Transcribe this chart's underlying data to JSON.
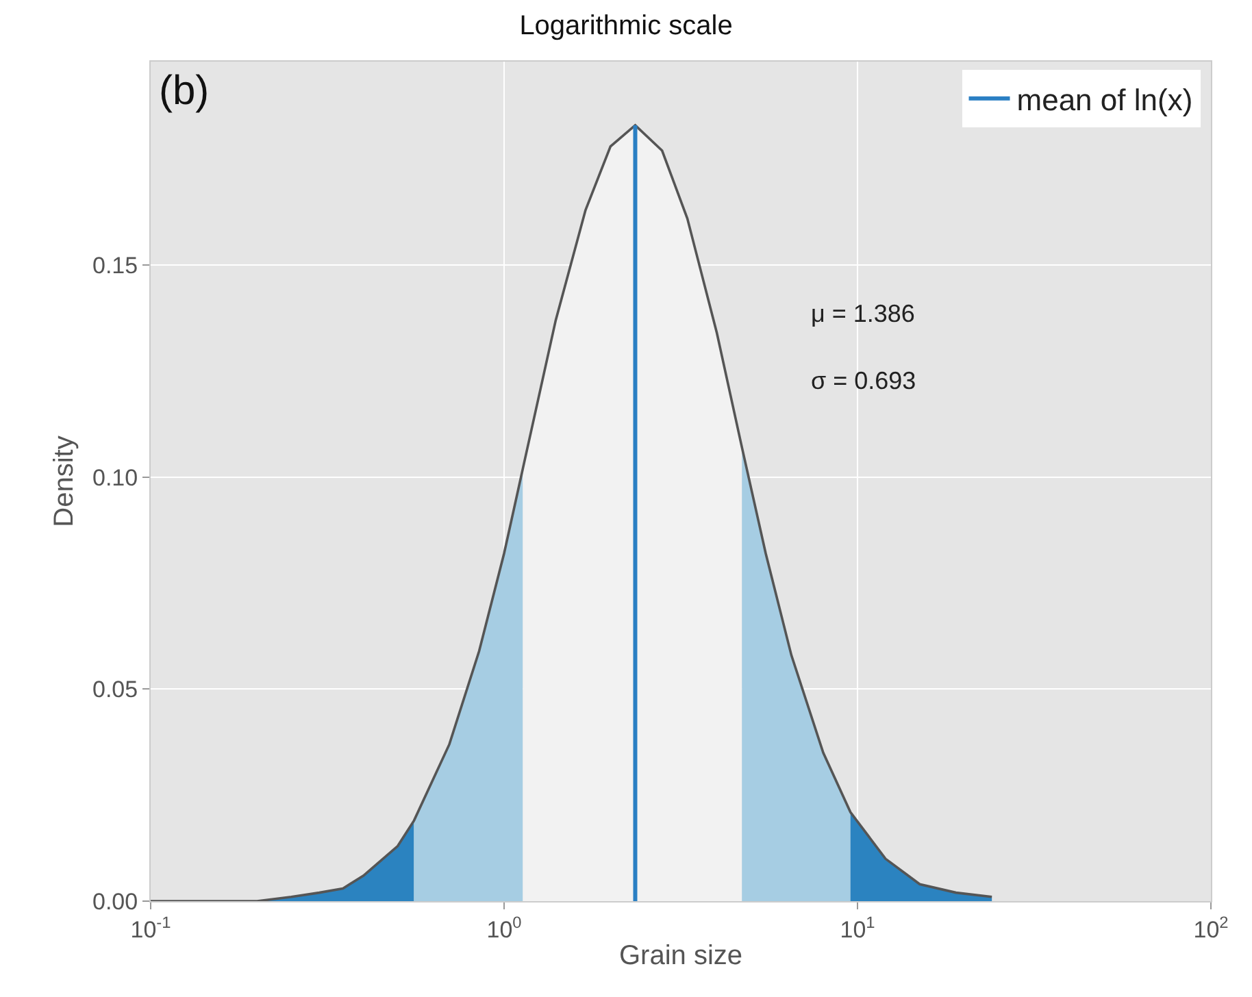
{
  "chart_data": {
    "type": "area",
    "title": "Logarithmic scale",
    "xlabel": "Grain size",
    "ylabel": "Density",
    "log": "x",
    "grid": true,
    "legend": "top right",
    "xlim": [
      0.1,
      100
    ],
    "ylim": [
      0,
      0.198
    ],
    "xticks": [
      {
        "value": 0.1,
        "label": "10$^{-1}$"
      },
      {
        "value": 1,
        "label": "10$^{0}$"
      },
      {
        "value": 10,
        "label": "10$^{1}$"
      },
      {
        "value": 100,
        "label": "10$^{2}$"
      }
    ],
    "yticks": [
      {
        "value": 0,
        "label": "0.00"
      },
      {
        "value": 0.05,
        "label": "0.05"
      },
      {
        "value": 0.1,
        "label": "0.10"
      },
      {
        "value": 0.15,
        "label": "0.15"
      }
    ],
    "annotations": [
      "(b)",
      "μ = 1.386",
      "σ = 0.693"
    ],
    "series": [
      {
        "color": "#2b83c0",
        "x": [
          0.1,
          0.15,
          0.2,
          0.25,
          0.3,
          0.35,
          0.4,
          0.5,
          0.556
        ],
        "values": [
          0.0,
          0.0,
          0.0,
          0.001,
          0.002,
          0.003,
          0.006,
          0.013,
          0.019
        ]
      },
      {
        "color": "#a6cde3",
        "x": [
          0.556,
          0.7,
          0.85,
          1.0,
          1.13
        ],
        "values": [
          0.019,
          0.037,
          0.059,
          0.082,
          0.102
        ]
      },
      {
        "color": "#f2f2f2",
        "x": [
          1.13,
          1.4,
          1.7,
          2.0,
          2.35,
          2.8,
          3.3,
          4.0,
          4.71
        ],
        "values": [
          0.102,
          0.137,
          0.163,
          0.178,
          0.183,
          0.177,
          0.161,
          0.134,
          0.107
        ]
      },
      {
        "color": "#a6cde3",
        "x": [
          4.71,
          5.5,
          6.5,
          8,
          9.55
        ],
        "values": [
          0.107,
          0.082,
          0.058,
          0.035,
          0.021
        ]
      },
      {
        "color": "#2b83c0",
        "x": [
          9.55,
          12,
          15,
          19,
          24
        ],
        "values": [
          0.021,
          0.01,
          0.004,
          0.002,
          0.001
        ]
      },
      {
        "type": "line",
        "color": "#555555",
        "x": [
          0.1,
          0.15,
          0.2,
          0.25,
          0.3,
          0.35,
          0.4,
          0.5,
          0.556,
          0.7,
          0.85,
          1.0,
          1.13,
          1.4,
          1.7,
          2.0,
          2.35,
          2.8,
          3.3,
          4.0,
          4.71,
          5.5,
          6.5,
          8,
          9.55,
          12,
          15,
          19,
          24
        ],
        "values": [
          0.0,
          0.0,
          0.0,
          0.001,
          0.002,
          0.003,
          0.006,
          0.013,
          0.019,
          0.037,
          0.059,
          0.082,
          0.102,
          0.137,
          0.163,
          0.178,
          0.183,
          0.177,
          0.161,
          0.134,
          0.107,
          0.082,
          0.058,
          0.035,
          0.021,
          0.01,
          0.004,
          0.002,
          0.001
        ]
      },
      {
        "type": "line",
        "name": "mean of ln(x)",
        "color": "#2a7fc3",
        "x": [
          2.35,
          2.35
        ],
        "values": [
          0,
          0.183
        ]
      }
    ]
  }
}
